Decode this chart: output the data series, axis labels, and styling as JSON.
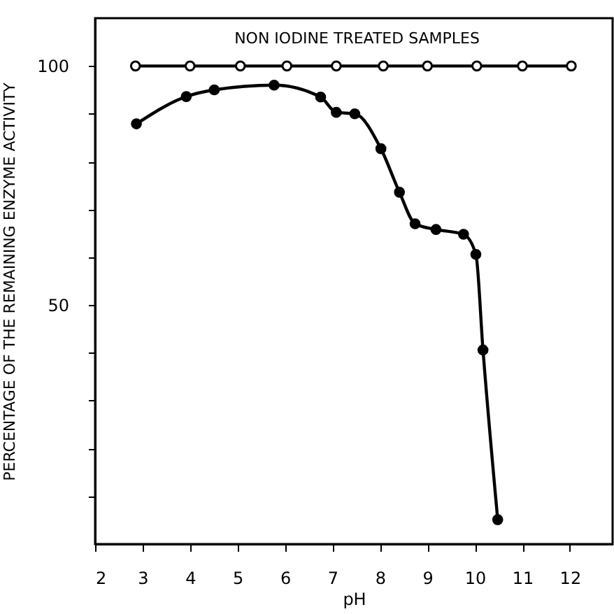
{
  "chart_data": {
    "type": "line",
    "xlabel": "pH",
    "ylabel": "PERCENTAGE OF THE REMAINING ENZYME ACTIVITY",
    "xlim": [
      2,
      12.9
    ],
    "ylim": [
      0,
      110
    ],
    "xticks": [
      2,
      3,
      4,
      5,
      6,
      7,
      8,
      9,
      10,
      11,
      12
    ],
    "yticks": [
      {
        "value": 10,
        "label": null
      },
      {
        "value": 20,
        "label": null
      },
      {
        "value": 30,
        "label": null
      },
      {
        "value": 40,
        "label": null
      },
      50,
      {
        "value": 60,
        "label": null
      },
      {
        "value": 70,
        "label": null
      },
      {
        "value": 80,
        "label": null
      },
      {
        "value": 90,
        "label": null
      },
      100
    ],
    "grid": false,
    "legend": "top",
    "marker": "circle",
    "line_style": "solid",
    "series": [
      {
        "name": "NON IODINE TREATED SAMPLES",
        "color": "#000000",
        "x": [
          2.85,
          4.0,
          5.06,
          6.04,
          7.08,
          8.07,
          9.0,
          10.04,
          11.0,
          12.03
        ],
        "values": [
          100,
          100,
          100,
          100,
          100,
          100,
          100,
          100,
          100,
          100
        ]
      },
      {
        "color": "#000000",
        "x": [
          2.87,
          3.92,
          4.51,
          5.77,
          6.75,
          7.08,
          7.47,
          8.02,
          8.41,
          8.74,
          9.18,
          9.76,
          10.02,
          10.17,
          10.48
        ],
        "values": [
          87.9,
          93.6,
          95.0,
          96.0,
          93.5,
          90.3,
          90.0,
          82.7,
          73.6,
          67.0,
          65.8,
          64.8,
          60.6,
          40.6,
          5.1
        ]
      }
    ]
  }
}
